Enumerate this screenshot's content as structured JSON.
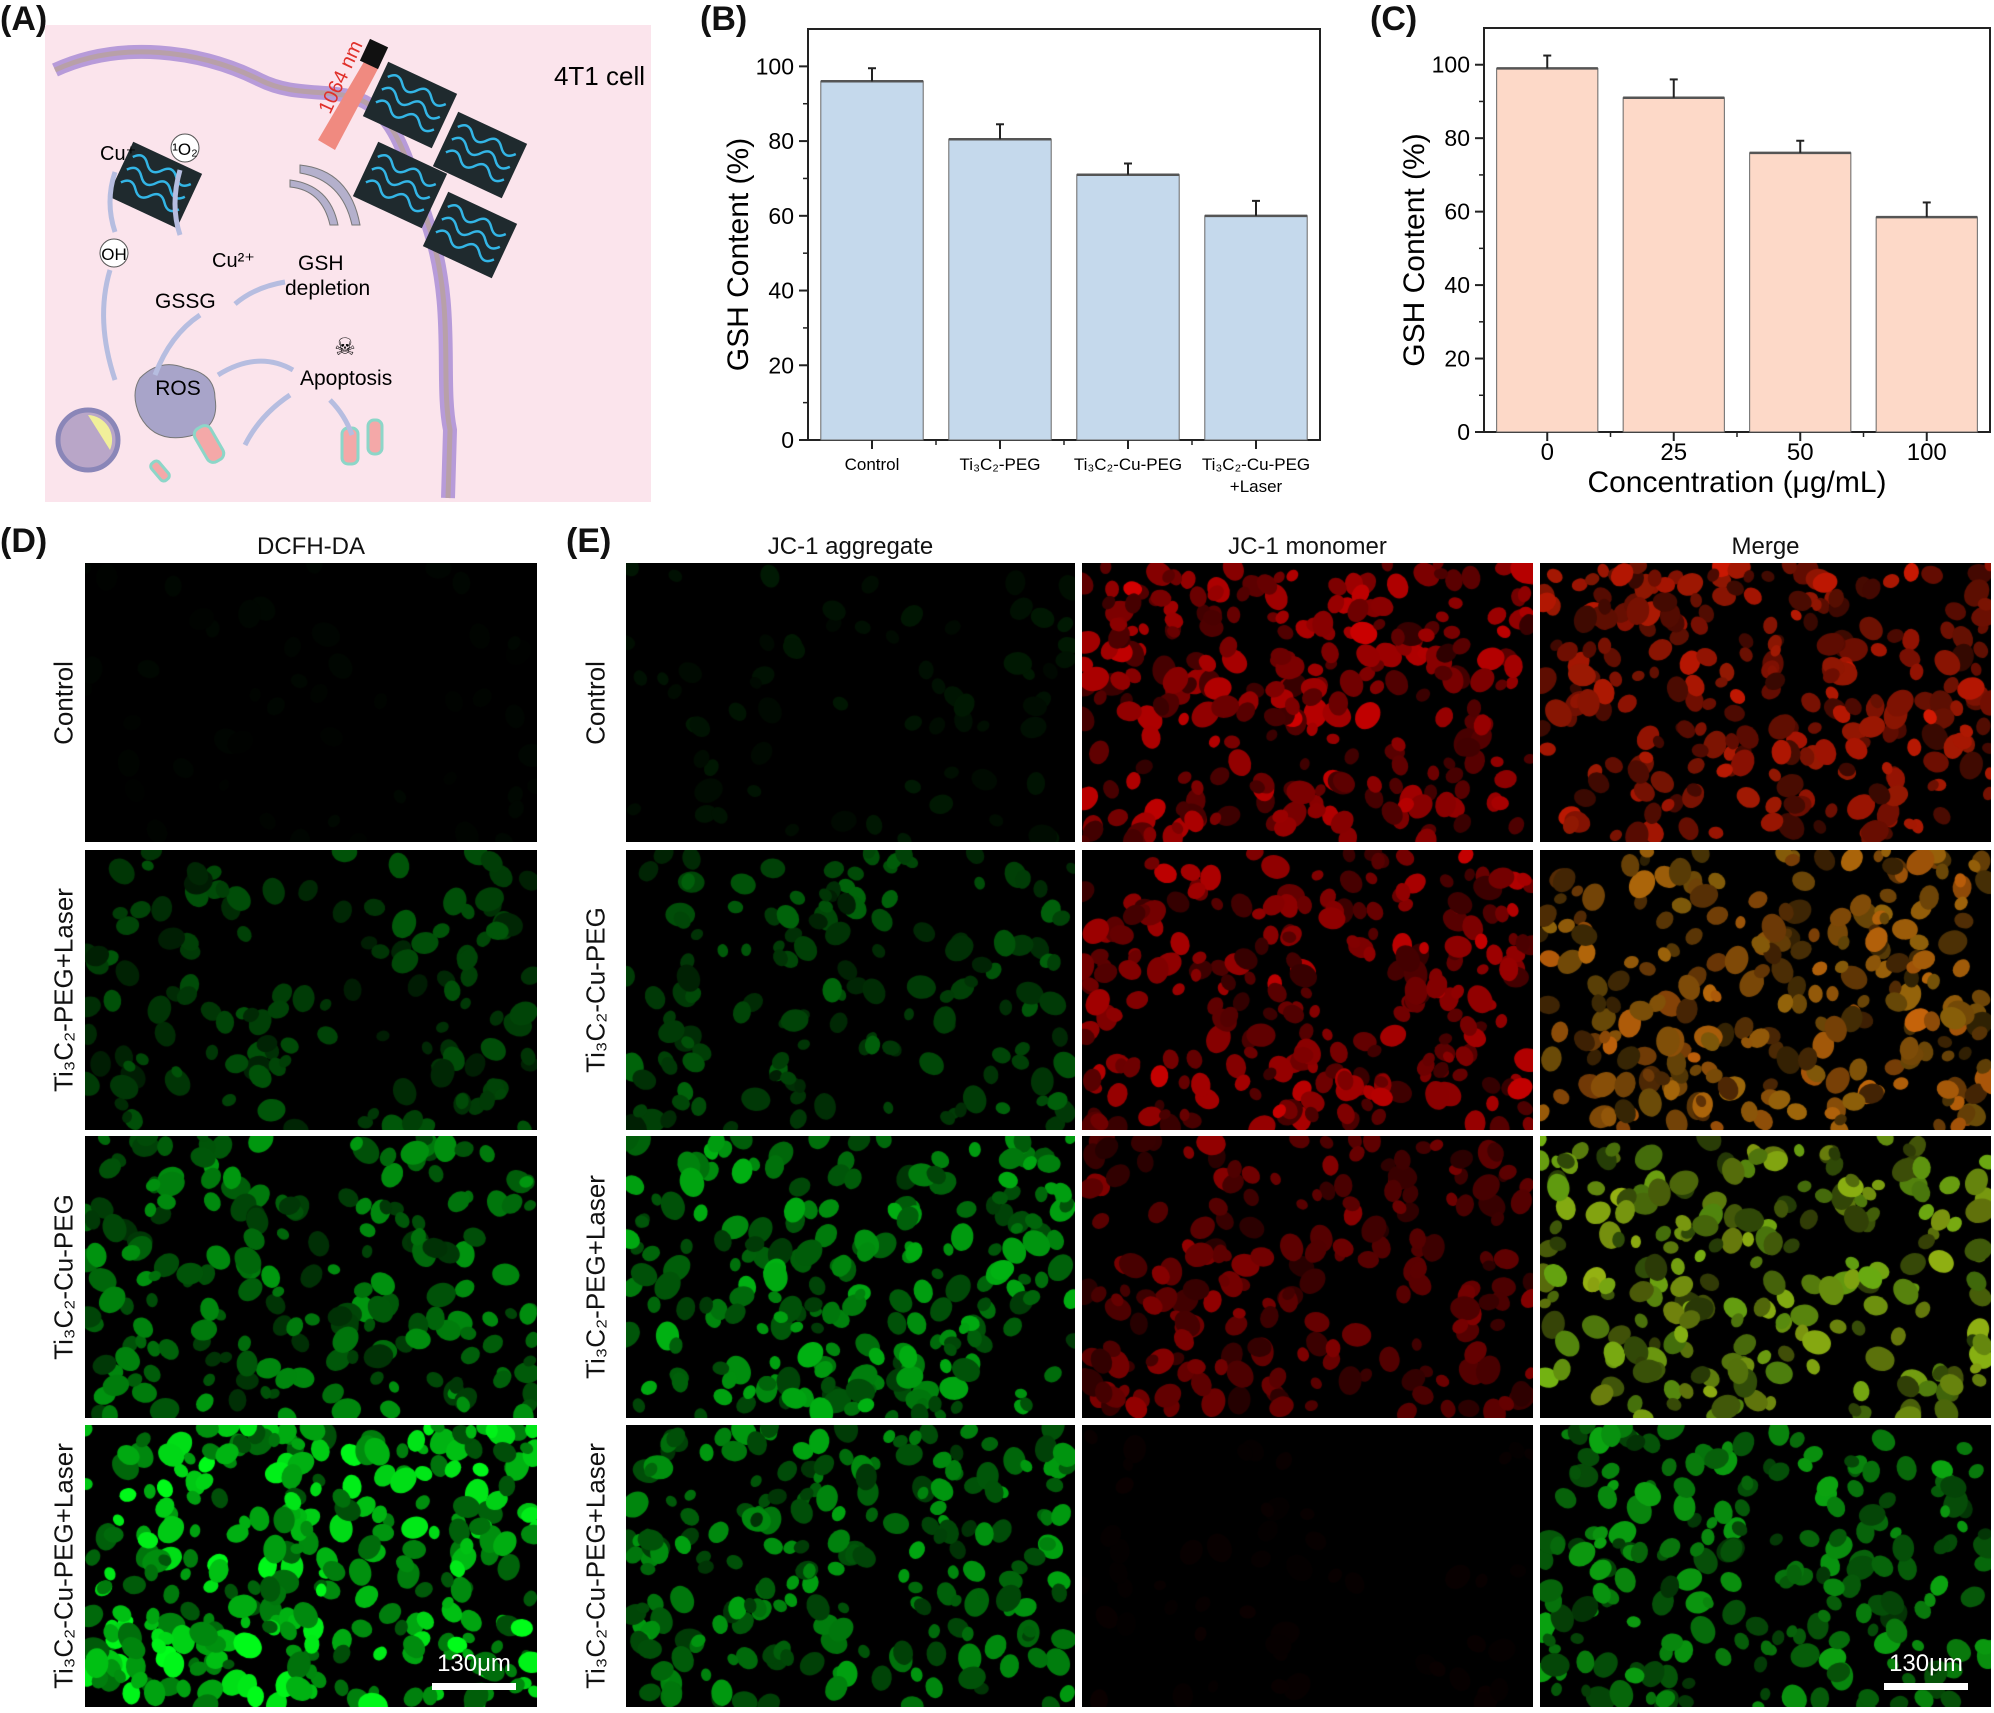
{
  "panels": {
    "A": "(A)",
    "B": "(B)",
    "C": "(C)",
    "D": "(D)",
    "E": "(E)"
  },
  "schematic": {
    "cell_label": "4T1 cell",
    "laser_label": "1064 nm",
    "labels": {
      "cu_plus": "Cu⁺",
      "singlet_oxygen": "¹O₂",
      "hydroxyl": "OH",
      "cu_2plus": "Cu²⁺",
      "gsh": "GSH",
      "depletion": "depletion",
      "gssg": "GSSG",
      "ros": "ROS",
      "apoptosis": "Apoptosis"
    },
    "colors": {
      "background": "#fbe4ec",
      "membrane": "#b79bd9",
      "nanosheet": "#1f2a2e",
      "wave": "#33b5e5"
    }
  },
  "chart_data": [
    {
      "id": "B",
      "type": "bar",
      "categories": [
        "Control",
        "Ti₃C₂-PEG",
        "Ti₃C₂-Cu-PEG",
        "Ti₃C₂-Cu-PEG +Laser"
      ],
      "category_lines": [
        [
          "Control"
        ],
        [
          "Ti₃C₂-PEG"
        ],
        [
          "Ti₃C₂-Cu-PEG"
        ],
        [
          "Ti₃C₂-Cu-PEG",
          "+Laser"
        ]
      ],
      "values": [
        96,
        80.5,
        71,
        60
      ],
      "errors": [
        3.5,
        4,
        3,
        4
      ],
      "xlabel": "",
      "ylabel": "GSH Content (%)",
      "ylim": [
        0,
        110
      ],
      "yticks": [
        0,
        20,
        40,
        60,
        80,
        100
      ],
      "bar_color": "#c5d9ec",
      "grid": false
    },
    {
      "id": "C",
      "type": "bar",
      "categories": [
        "0",
        "25",
        "50",
        "100"
      ],
      "category_lines": [
        [
          "0"
        ],
        [
          "25"
        ],
        [
          "50"
        ],
        [
          "100"
        ]
      ],
      "values": [
        99,
        91,
        76,
        58.5
      ],
      "errors": [
        3.5,
        5,
        3.3,
        4
      ],
      "xlabel": "Concentration (μg/mL)",
      "ylabel": "GSH Content (%)",
      "ylim": [
        0,
        110
      ],
      "yticks": [
        0,
        20,
        40,
        60,
        80,
        100
      ],
      "bar_color": "#fdd9c8",
      "grid": false
    }
  ],
  "panelD": {
    "title": "DCFH-DA",
    "rows": [
      "Control",
      "Ti₃C₂-PEG+Laser",
      "Ti₃C₂-Cu-PEG",
      "Ti₃C₂-Cu-PEG+Laser"
    ],
    "green_intensity": [
      0.03,
      0.35,
      0.6,
      1.0
    ],
    "scale_bar": "130μm"
  },
  "panelE": {
    "columns": [
      "JC-1 aggregate",
      "JC-1 monomer",
      "Merge"
    ],
    "rows": [
      "Control",
      "Ti₃C₂-Cu-PEG",
      "Ti₃C₂-PEG+Laser",
      "Ti₃C₂-Cu-PEG+Laser"
    ],
    "green_intensity": [
      0.1,
      0.4,
      0.7,
      0.65
    ],
    "red_intensity": [
      0.85,
      0.8,
      0.6,
      0.05
    ],
    "scale_bar": "130μm"
  }
}
